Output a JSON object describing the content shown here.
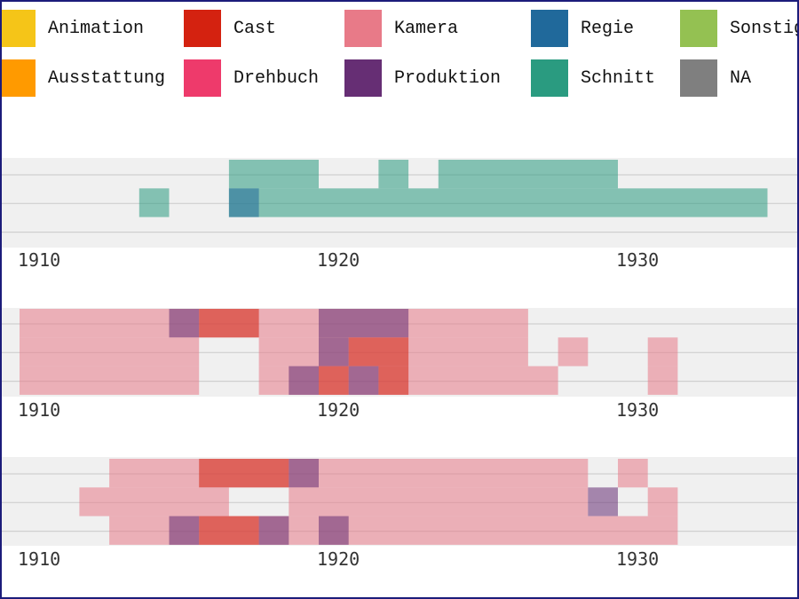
{
  "legend": [
    {
      "label": "Animation",
      "color": "#f5c518"
    },
    {
      "label": "Ausstattung",
      "color": "#ff9a00"
    },
    {
      "label": "Cast",
      "color": "#d42210"
    },
    {
      "label": "Drehbuch",
      "color": "#ee3a6b"
    },
    {
      "label": "Kamera",
      "color": "#e87a88"
    },
    {
      "label": "Produktion",
      "color": "#662e74"
    },
    {
      "label": "Regie",
      "color": "#20699b"
    },
    {
      "label": "Schnitt",
      "color": "#2a9b80"
    },
    {
      "label": "Sonstiges",
      "color": "#94c152"
    },
    {
      "label": "NA",
      "color": "#7f7f7f"
    }
  ],
  "chart_data": [
    {
      "type": "heatmap",
      "x_ticks": [
        "1910",
        "1920",
        "1930"
      ],
      "x_range": [
        1909,
        1935
      ],
      "rows": 3,
      "cells": [
        {
          "row": 0,
          "start": 1917,
          "end": 1920,
          "category": "Schnitt"
        },
        {
          "row": 0,
          "start": 1922,
          "end": 1923,
          "category": "Schnitt"
        },
        {
          "row": 0,
          "start": 1924,
          "end": 1930,
          "category": "Schnitt"
        },
        {
          "row": 1,
          "start": 1917,
          "end": 1935,
          "category": "Schnitt"
        },
        {
          "row": 1,
          "start": 1914,
          "end": 1915,
          "category": "Schnitt"
        },
        {
          "row": 1,
          "start": 1917,
          "end": 1918,
          "category": "Regie"
        }
      ]
    },
    {
      "type": "heatmap",
      "x_ticks": [
        "1910",
        "1920",
        "1930"
      ],
      "x_range": [
        1909,
        1935
      ],
      "rows": 3,
      "cells": [
        {
          "row": 0,
          "start": 1910,
          "end": 1927,
          "category": "Kamera"
        },
        {
          "row": 0,
          "start": 1915,
          "end": 1916,
          "category": "Produktion"
        },
        {
          "row": 0,
          "start": 1916,
          "end": 1918,
          "category": "Cast"
        },
        {
          "row": 0,
          "start": 1920,
          "end": 1923,
          "category": "Produktion"
        },
        {
          "row": 1,
          "start": 1910,
          "end": 1916,
          "category": "Kamera"
        },
        {
          "row": 1,
          "start": 1918,
          "end": 1927,
          "category": "Kamera"
        },
        {
          "row": 1,
          "start": 1928,
          "end": 1929,
          "category": "Kamera"
        },
        {
          "row": 1,
          "start": 1931,
          "end": 1932,
          "category": "Kamera"
        },
        {
          "row": 1,
          "start": 1920,
          "end": 1921,
          "category": "Produktion"
        },
        {
          "row": 1,
          "start": 1921,
          "end": 1923,
          "category": "Cast"
        },
        {
          "row": 2,
          "start": 1910,
          "end": 1916,
          "category": "Kamera"
        },
        {
          "row": 2,
          "start": 1918,
          "end": 1928,
          "category": "Kamera"
        },
        {
          "row": 2,
          "start": 1931,
          "end": 1932,
          "category": "Kamera"
        },
        {
          "row": 2,
          "start": 1919,
          "end": 1920,
          "category": "Produktion"
        },
        {
          "row": 2,
          "start": 1920,
          "end": 1921,
          "category": "Cast"
        },
        {
          "row": 2,
          "start": 1921,
          "end": 1922,
          "category": "Produktion"
        },
        {
          "row": 2,
          "start": 1922,
          "end": 1923,
          "category": "Cast"
        }
      ]
    },
    {
      "type": "heatmap",
      "x_ticks": [
        "1910",
        "1920",
        "1930"
      ],
      "x_range": [
        1909,
        1935
      ],
      "rows": 3,
      "cells": [
        {
          "row": 0,
          "start": 1913,
          "end": 1929,
          "category": "Kamera"
        },
        {
          "row": 0,
          "start": 1930,
          "end": 1931,
          "category": "Kamera"
        },
        {
          "row": 0,
          "start": 1916,
          "end": 1919,
          "category": "Cast"
        },
        {
          "row": 0,
          "start": 1919,
          "end": 1920,
          "category": "Produktion"
        },
        {
          "row": 1,
          "start": 1912,
          "end": 1917,
          "category": "Kamera"
        },
        {
          "row": 1,
          "start": 1919,
          "end": 1929,
          "category": "Kamera"
        },
        {
          "row": 1,
          "start": 1931,
          "end": 1932,
          "category": "Kamera"
        },
        {
          "row": 1,
          "start": 1929,
          "end": 1930,
          "category": "Produktion"
        },
        {
          "row": 2,
          "start": 1913,
          "end": 1932,
          "category": "Kamera"
        },
        {
          "row": 2,
          "start": 1915,
          "end": 1916,
          "category": "Produktion"
        },
        {
          "row": 2,
          "start": 1916,
          "end": 1918,
          "category": "Cast"
        },
        {
          "row": 2,
          "start": 1918,
          "end": 1919,
          "category": "Produktion"
        },
        {
          "row": 2,
          "start": 1920,
          "end": 1921,
          "category": "Produktion"
        }
      ]
    }
  ]
}
